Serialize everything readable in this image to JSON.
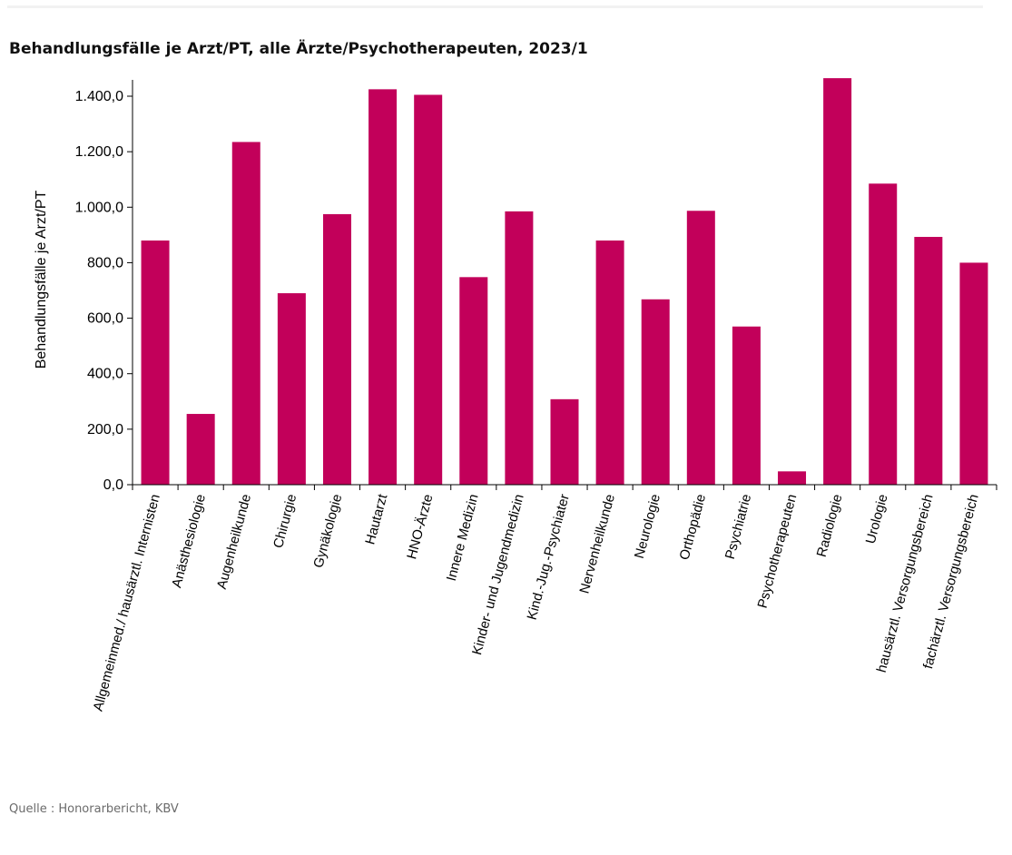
{
  "chart_data": {
    "type": "bar",
    "title": "Behandlungsfälle je Arzt/PT, alle Ärzte/Psychotherapeuten, 2023/1",
    "ylabel": "Behandlungsfälle je Arzt/PT",
    "xlabel": "",
    "ylim": [
      0,
      1400
    ],
    "yticks": [
      0,
      200,
      400,
      600,
      800,
      1000,
      1200,
      1400
    ],
    "ytick_labels": [
      "0,0",
      "200,0",
      "400,0",
      "600,0",
      "800,0",
      "1.000,0",
      "1.200,0",
      "1.400,0"
    ],
    "grid": false,
    "bar_color": "#c2005a",
    "categories": [
      "Allgemeinmed./ hausärztl. Internisten",
      "Anästhesiologie",
      "Augenheilkunde",
      "Chirurgie",
      "Gynäkologie",
      "Hautarzt",
      "HNO-Ärzte",
      "Innere Medizin",
      "Kinder- und Jugendmedizin",
      "Kind.-Jug.-Psychiater",
      "Nervenheilkunde",
      "Neurologie",
      "Orthopädie",
      "Psychiatrie",
      "Psychotherapeuten",
      "Radiologie",
      "Urologie",
      "hausärztl. Versorgungsbereich",
      "fachärztl. Versorgungsbereich"
    ],
    "values": [
      880,
      255,
      1235,
      690,
      975,
      1425,
      1405,
      748,
      985,
      308,
      880,
      668,
      987,
      570,
      48,
      1465,
      1085,
      893,
      800
    ]
  },
  "source": "Quelle : Honorarbericht, KBV"
}
